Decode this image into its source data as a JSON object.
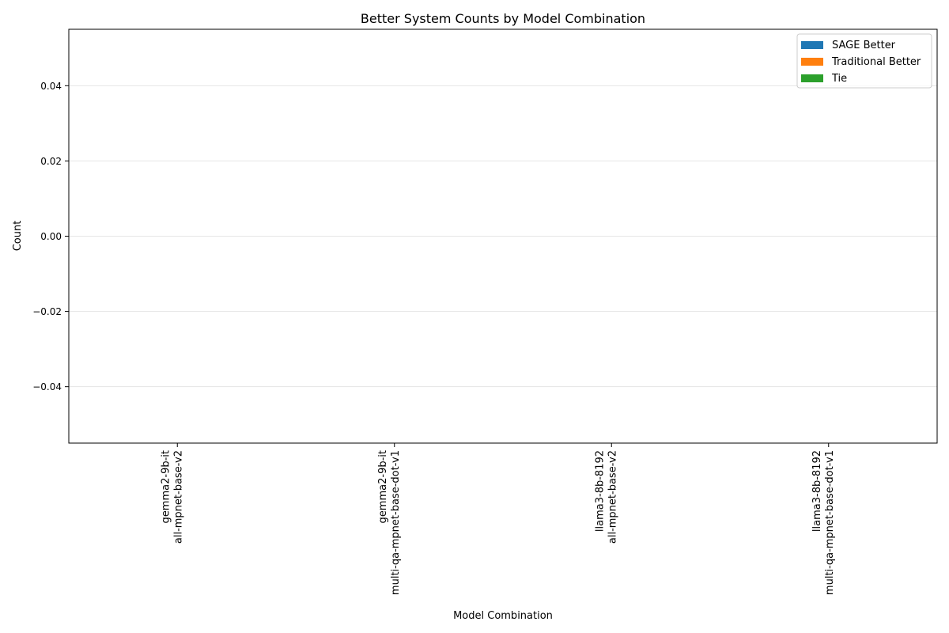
{
  "chart_data": {
    "type": "bar",
    "title": "Better System Counts by Model Combination",
    "xlabel": "Model Combination",
    "ylabel": "Count",
    "categories": [
      [
        "gemma2-9b-it",
        "all-mpnet-base-v2"
      ],
      [
        "gemma2-9b-it",
        "multi-qa-mpnet-base-dot-v1"
      ],
      [
        "llama3-8b-8192",
        "all-mpnet-base-v2"
      ],
      [
        "llama3-8b-8192",
        "multi-qa-mpnet-base-dot-v1"
      ]
    ],
    "series": [
      {
        "name": "SAGE Better",
        "color": "#1f77b4",
        "values": [
          0,
          0,
          0,
          0
        ]
      },
      {
        "name": "Traditional Better",
        "color": "#ff7f0e",
        "values": [
          0,
          0,
          0,
          0
        ]
      },
      {
        "name": "Tie",
        "color": "#2ca02c",
        "values": [
          0,
          0,
          0,
          0
        ]
      }
    ],
    "ylim": [
      -0.055,
      0.055
    ],
    "yticks": [
      -0.04,
      -0.02,
      0.0,
      0.02,
      0.04
    ],
    "ytick_labels": [
      "−0.04",
      "−0.02",
      "0.00",
      "0.02",
      "0.04"
    ],
    "grid": "y",
    "legend_position": "top-right"
  }
}
